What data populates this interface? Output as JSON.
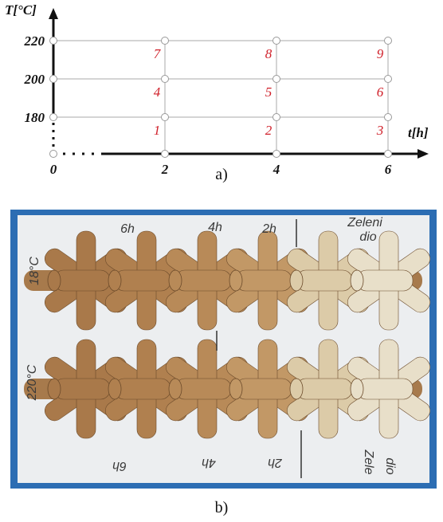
{
  "diagram": {
    "y_label": "T[°C]",
    "x_label": "t[h]",
    "xticks": [
      0,
      2,
      4,
      6
    ],
    "yticks": [
      180,
      200,
      220
    ],
    "points": [
      {
        "t": 2,
        "T": 180,
        "label": "1"
      },
      {
        "t": 4,
        "T": 180,
        "label": "2"
      },
      {
        "t": 6,
        "T": 180,
        "label": "3"
      },
      {
        "t": 2,
        "T": 200,
        "label": "4"
      },
      {
        "t": 4,
        "T": 200,
        "label": "5"
      },
      {
        "t": 6,
        "T": 200,
        "label": "6"
      },
      {
        "t": 2,
        "T": 220,
        "label": "7"
      },
      {
        "t": 4,
        "T": 220,
        "label": "8"
      },
      {
        "t": 6,
        "T": 220,
        "label": "9"
      }
    ],
    "caption": "a)"
  },
  "photo": {
    "labels": [
      "6h",
      "4h",
      "2h",
      "Zeleni",
      "dio",
      "18°C",
      "220°C",
      "6h",
      "4h",
      "2h",
      "Zele",
      "dio"
    ],
    "caption": "b)"
  }
}
